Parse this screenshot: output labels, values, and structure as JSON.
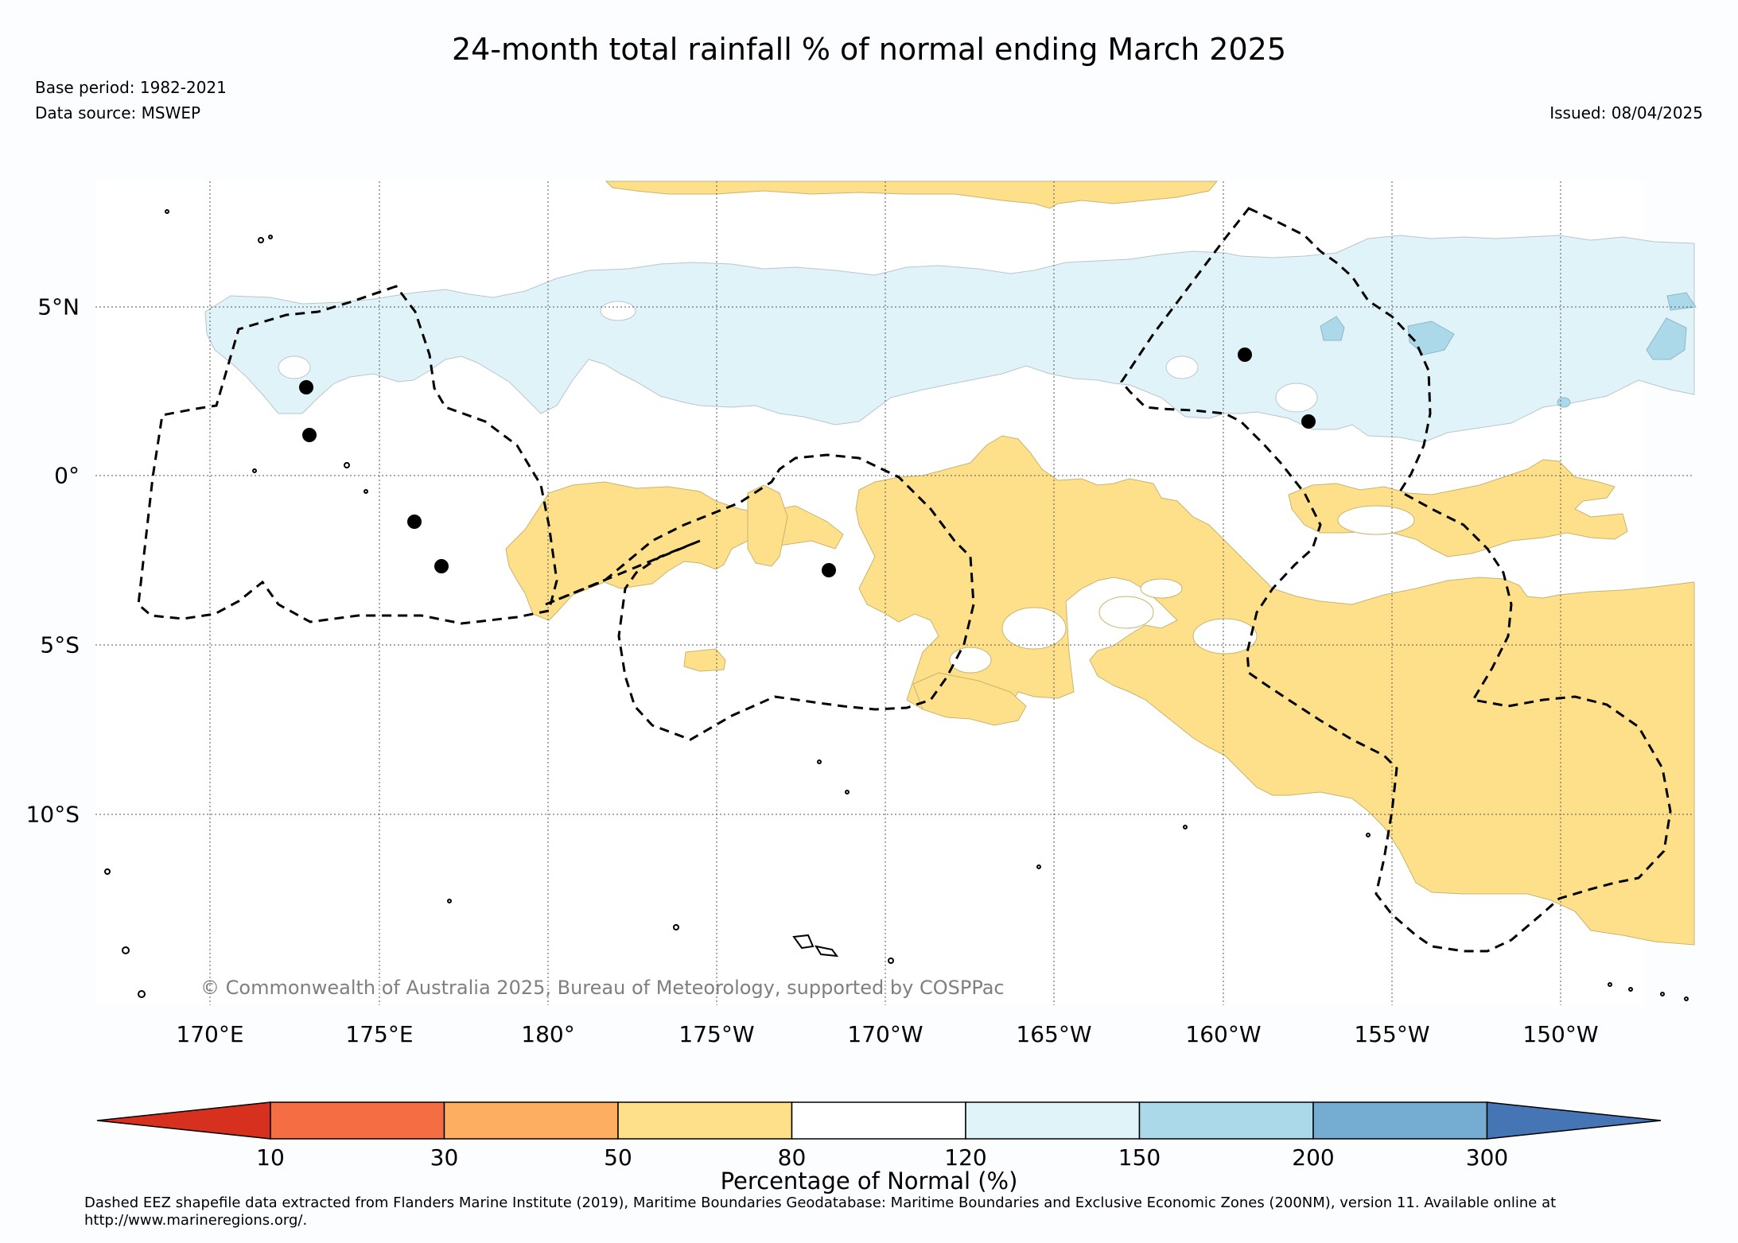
{
  "title": "24-month total rainfall % of normal ending March 2025",
  "base_period": "Base period: 1982-2021",
  "data_source": "Data source: MSWEP",
  "issued": "Issued: 08/04/2025",
  "copyright": "© Commonwealth of Australia 2025, Bureau of Meteorology, supported by COSPPac",
  "lon_labels": [
    "170°E",
    "175°E",
    "180°",
    "175°W",
    "170°W",
    "165°W",
    "160°W",
    "155°W",
    "150°W"
  ],
  "lat_labels": [
    "5°N",
    "0°",
    "5°S",
    "10°S"
  ],
  "colorbar": {
    "ticks": [
      "10",
      "30",
      "50",
      "80",
      "120",
      "150",
      "200",
      "300"
    ],
    "colors": [
      "#d7301f",
      "#f46d43",
      "#fdae61",
      "#fee08b",
      "#ffffff",
      "#e0f3f8",
      "#abd9e9",
      "#74add1",
      "#4575b4"
    ],
    "label": "Percentage of Normal (%)"
  },
  "legend_colors": {
    "dry_50_80": "#fee08b",
    "wet_120_150": "#e0f3f8",
    "wet_150_200": "#abd9e9"
  },
  "footnote": "Dashed EEZ shapefile data extracted from Flanders Marine Institute (2019), Maritime Boundaries Geodatabase: Maritime Boundaries and Exclusive Economic Zones (200NM), version 11. Available online at http://www.marineregions.org/."
}
